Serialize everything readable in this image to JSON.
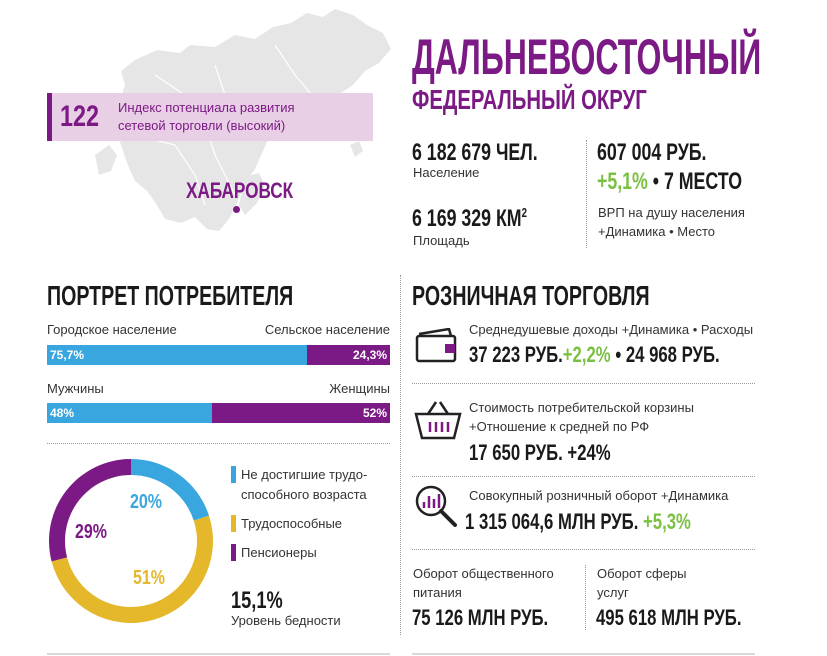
{
  "header": {
    "title_line1": "ДАЛЬНЕВОСТОЧНЫЙ",
    "title_line2": "ФЕДЕРАЛЬНЫЙ ОКРУГ"
  },
  "map": {
    "index_value": "122",
    "index_label_line1": "Индекс потенциала развития",
    "index_label_line2": "сетевой торговли (высокий)",
    "city": "ХАБАРОВСК"
  },
  "stats": {
    "population_value": "6 182 679 ЧЕЛ.",
    "population_label": "Население",
    "area_value": "6 169 329 КМ",
    "area_unit_sup": "2",
    "area_label": "Площадь",
    "grp_value": "607 004 РУБ.",
    "grp_dynamics": "+5,1%",
    "grp_separator": " • ",
    "grp_rank": "7 МЕСТО",
    "grp_label_line1": "ВРП на душу населения",
    "grp_label_line2": "+Динамика • Место"
  },
  "consumer": {
    "heading": "ПОРТРЕТ ПОТРЕБИТЕЛЯ",
    "urban_label": "Городское население",
    "rural_label": "Сельское население",
    "urban_value": "75,7%",
    "rural_value": "24,3%",
    "urban_fraction": 0.757,
    "men_label": "Мужчины",
    "women_label": "Женщины",
    "men_value": "48%",
    "women_value": "52%",
    "men_fraction": 0.48,
    "poverty_value": "15,1%",
    "poverty_label": "Уровень бедности"
  },
  "chart_data": {
    "type": "pie",
    "categories": [
      "Не достигшие трудоспособного возраста",
      "Трудоспособные",
      "Пенсионеры"
    ],
    "values": [
      20,
      51,
      29
    ],
    "labels": [
      "20%",
      "51%",
      "29%"
    ],
    "legend": [
      "Не достигшие трудо-",
      "способного возраста",
      "Трудоспособные",
      "Пенсионеры"
    ],
    "colors": [
      "#3aa6e0",
      "#e5b82c",
      "#7b1a84"
    ]
  },
  "retail": {
    "heading": "РОЗНИЧНАЯ ТОРГОВЛЯ",
    "income_label": "Среднедушевые доходы +Динамика • Расходы",
    "income_value": "37 223 РУБ.",
    "income_dynamics": "+2,2%",
    "income_separator": " • ",
    "income_expenses": "24 968 РУБ.",
    "basket_label_line1": "Стоимость потребительской корзины",
    "basket_label_line2": "+Отношение к средней по РФ",
    "basket_value": "17 650 РУБ. +24%",
    "turnover_label": "Совокупный розничный оборот +Динамика",
    "turnover_value": "1 315 064,6 МЛН РУБ.",
    "turnover_dynamics": "+5,3%",
    "catering_label_line1": "Оборот общественного",
    "catering_label_line2": "питания",
    "catering_value": "75 126 МЛН РУБ.",
    "services_label_line1": "Оборот сферы",
    "services_label_line2": "услуг",
    "services_value": "495 618 МЛН РУБ."
  },
  "colors": {
    "purple": "#7b1a84",
    "blue": "#3aa6e0",
    "yellow": "#e5b82c",
    "green": "#7ac143",
    "map_gray": "#e6e6e6",
    "index_bg": "#e8cfe6"
  }
}
